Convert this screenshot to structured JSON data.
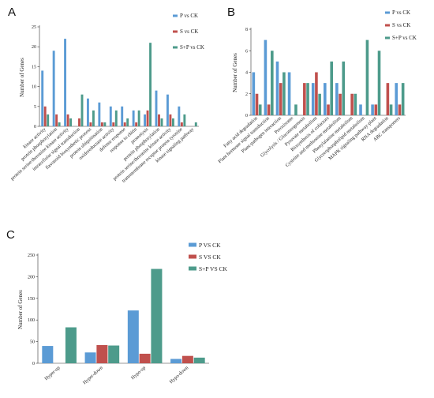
{
  "chart_data": [
    {
      "panel": "A",
      "type": "bar",
      "ylabel": "Number of Genes",
      "ylim": [
        0,
        25
      ],
      "yticks": [
        0,
        5,
        10,
        15,
        20,
        25
      ],
      "categories": [
        "kinase activity",
        "protein phosphorylation",
        "protein serine/threonine kinase activity",
        "intracellular signal transduction",
        "flavonoid biosynthetic process",
        "protein ubiquitination",
        "oxidoreductase activity",
        "defense response",
        "response to chitin",
        "proteolysis",
        "protein phosphorylation",
        "protein serine/threonine kinase activity",
        "transmembrane receptor protein tyrosine",
        "kinase signaling pathway"
      ],
      "series": [
        {
          "name": "P vs CK",
          "values": [
            14,
            19,
            22,
            0,
            7,
            6,
            5,
            5,
            4,
            3,
            9,
            8,
            5,
            0
          ]
        },
        {
          "name": "S vs CK",
          "values": [
            5,
            3,
            3,
            2,
            1,
            1,
            1,
            1,
            1,
            4,
            3,
            3,
            1,
            0
          ]
        },
        {
          "name": "S+P vs CK",
          "values": [
            3,
            1,
            2,
            8,
            4,
            1,
            4,
            2,
            4,
            21,
            2,
            2,
            3,
            1
          ]
        }
      ],
      "colors": [
        "#5b9bd5",
        "#c0504d",
        "#4d9b8b"
      ],
      "legend": "top-right"
    },
    {
      "panel": "B",
      "type": "bar",
      "ylabel": "Number of Genes",
      "ylim": [
        0,
        8
      ],
      "yticks": [
        0,
        2,
        4,
        6,
        8
      ],
      "categories": [
        "Fatty acid degradation",
        "Plant hormone signal transduction",
        "Plant-pathogen interaction",
        "Peroxisome",
        "Glycolysis / Gluconeogenesis",
        "Pyruvate metabolism",
        "Biosynthesis of cofactors",
        "Cysteine and methionine metabolism",
        "Phenylalanine metabolism",
        "Glycerophospholipid metabolism",
        "MAPK signaling pathway-plant",
        "RNA degradation",
        "ABC transporters"
      ],
      "series": [
        {
          "name": "P vs CK",
          "values": [
            4,
            7,
            5,
            4,
            0,
            3,
            3,
            3,
            0,
            1,
            1,
            0,
            3
          ]
        },
        {
          "name": "S vs CK",
          "values": [
            2,
            1,
            3,
            0,
            3,
            4,
            1,
            2,
            2,
            0,
            1,
            3,
            1
          ]
        },
        {
          "name": "S+P vs CK",
          "values": [
            1,
            6,
            4,
            1,
            3,
            2,
            5,
            5,
            2,
            7,
            6,
            1,
            3
          ]
        }
      ],
      "colors": [
        "#5b9bd5",
        "#c0504d",
        "#4d9b8b"
      ],
      "legend": "top-right"
    },
    {
      "panel": "C",
      "type": "bar",
      "ylabel": "Number of Genes",
      "ylim": [
        0,
        250
      ],
      "yticks": [
        0,
        50,
        100,
        150,
        200,
        250
      ],
      "categories": [
        "Hyper-up",
        "Hyper-down",
        "Hypo-up",
        "Hypo-down"
      ],
      "series": [
        {
          "name": "P VS CK",
          "values": [
            40,
            25,
            122,
            10
          ]
        },
        {
          "name": "S VS CK",
          "values": [
            0,
            42,
            22,
            17
          ]
        },
        {
          "name": "S+P VS CK",
          "values": [
            83,
            41,
            218,
            13
          ]
        }
      ],
      "colors": [
        "#5b9bd5",
        "#c0504d",
        "#4d9b8b"
      ],
      "legend": "top-right"
    }
  ]
}
